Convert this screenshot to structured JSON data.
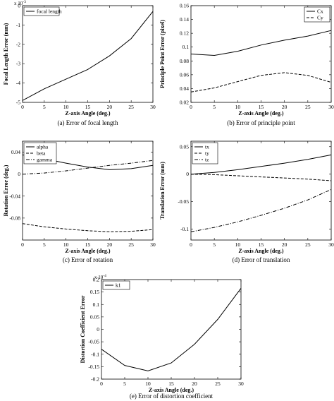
{
  "chart_data": [
    {
      "type": "line",
      "caption": "(a) Error of focal length",
      "xlabel": "Z-axis Angle (deg.)",
      "ylabel": "Focal Length Error (mm)",
      "y_scale_label": "x 10",
      "y_scale_exp": "-3",
      "xlim": [
        0,
        30
      ],
      "ylim": [
        -5,
        0
      ],
      "xticks": [
        0,
        5,
        10,
        15,
        20,
        25,
        30
      ],
      "yticks": [
        -5,
        -4,
        -3,
        -2,
        -1,
        0
      ],
      "xtick_labels": [
        "0",
        "5",
        "10",
        "15",
        "20",
        "25",
        "30"
      ],
      "ytick_labels": [
        "-5",
        "-4",
        "-3",
        "-2",
        "-1",
        "0"
      ],
      "legend_position": "top-left",
      "series": [
        {
          "name": "focal length",
          "style": "solid",
          "x": [
            0,
            5,
            10,
            15,
            20,
            25,
            30
          ],
          "y": [
            -4.9,
            -4.3,
            -3.8,
            -3.3,
            -2.6,
            -1.7,
            -0.3
          ]
        }
      ]
    },
    {
      "type": "line",
      "caption": "(b) Error of principle point",
      "xlabel": "Z-axis Angle (deg.)",
      "ylabel": "Principle Point Error (pixel)",
      "xlim": [
        0,
        30
      ],
      "ylim": [
        0.02,
        0.16
      ],
      "xticks": [
        0,
        5,
        10,
        15,
        20,
        25,
        30
      ],
      "yticks": [
        0.02,
        0.04,
        0.06,
        0.08,
        0.1,
        0.12,
        0.14,
        0.16
      ],
      "xtick_labels": [
        "0",
        "5",
        "10",
        "15",
        "20",
        "25",
        "30"
      ],
      "ytick_labels": [
        "0.02",
        "0.04",
        "0.06",
        "0.08",
        "0.1",
        "0.12",
        "0.14",
        "0.16"
      ],
      "legend_position": "top-right",
      "series": [
        {
          "name": "Cx",
          "style": "solid",
          "x": [
            0,
            5,
            10,
            15,
            20,
            25,
            30
          ],
          "y": [
            0.09,
            0.088,
            0.094,
            0.103,
            0.11,
            0.116,
            0.124
          ]
        },
        {
          "name": "Cy",
          "style": "dashed",
          "x": [
            0,
            5,
            10,
            15,
            20,
            25,
            30
          ],
          "y": [
            0.035,
            0.041,
            0.05,
            0.059,
            0.063,
            0.059,
            0.049
          ]
        }
      ]
    },
    {
      "type": "line",
      "caption": "(c) Error of rotation",
      "xlabel": "Z-axis Angle (deg.)",
      "ylabel": "Rotation Error (deg.)",
      "xlim": [
        0,
        30
      ],
      "ylim": [
        -0.12,
        0.06
      ],
      "xticks": [
        0,
        5,
        10,
        15,
        20,
        25,
        30
      ],
      "yticks": [
        -0.08,
        -0.04,
        0,
        0.04
      ],
      "xtick_labels": [
        "0",
        "5",
        "10",
        "15",
        "20",
        "25",
        "30"
      ],
      "ytick_labels": [
        "-0.08",
        "-0.04",
        "0",
        "0.04"
      ],
      "legend_position": "top-left",
      "series": [
        {
          "name": "alpha",
          "style": "solid",
          "x": [
            0,
            5,
            10,
            15,
            20,
            25,
            30
          ],
          "y": [
            0.035,
            0.028,
            0.02,
            0.013,
            0.008,
            0.01,
            0.016
          ]
        },
        {
          "name": "beta",
          "style": "dashed",
          "x": [
            0,
            5,
            10,
            15,
            20,
            25,
            30
          ],
          "y": [
            -0.09,
            -0.096,
            -0.1,
            -0.103,
            -0.105,
            -0.104,
            -0.101
          ]
        },
        {
          "name": "gamma",
          "style": "dashdot",
          "x": [
            0,
            5,
            10,
            15,
            20,
            25,
            30
          ],
          "y": [
            0,
            0.002,
            0.006,
            0.011,
            0.016,
            0.02,
            0.025
          ]
        }
      ]
    },
    {
      "type": "line",
      "caption": "(d) Error of translation",
      "xlabel": "Z-axis Angle (deg.)",
      "ylabel": "Translation Error (mm)",
      "xlim": [
        0,
        30
      ],
      "ylim": [
        -0.12,
        0.06
      ],
      "xticks": [
        0,
        5,
        10,
        15,
        20,
        25,
        30
      ],
      "yticks": [
        -0.1,
        -0.05,
        0,
        0.05
      ],
      "xtick_labels": [
        "0",
        "5",
        "10",
        "15",
        "20",
        "25",
        "30"
      ],
      "ytick_labels": [
        "-0.1",
        "-0.05",
        "0",
        "0.05"
      ],
      "legend_position": "top-left",
      "series": [
        {
          "name": "tx",
          "style": "solid",
          "x": [
            0,
            5,
            10,
            15,
            20,
            25,
            30
          ],
          "y": [
            0,
            0.003,
            0.008,
            0.014,
            0.02,
            0.027,
            0.035
          ]
        },
        {
          "name": "ty",
          "style": "dashed",
          "x": [
            0,
            5,
            10,
            15,
            20,
            25,
            30
          ],
          "y": [
            0,
            -0.001,
            -0.003,
            -0.005,
            -0.007,
            -0.009,
            -0.012
          ]
        },
        {
          "name": "tz",
          "style": "dashdot",
          "x": [
            0,
            5,
            10,
            15,
            20,
            25,
            30
          ],
          "y": [
            -0.105,
            -0.097,
            -0.087,
            -0.075,
            -0.062,
            -0.047,
            -0.028
          ]
        }
      ]
    },
    {
      "type": "line",
      "caption": "(e) Error of distortion coefficient",
      "xlabel": "Z-axis Angle (deg.)",
      "ylabel": "Distortion Coefficient Error",
      "y_scale_label": "x 10",
      "y_scale_exp": "-4",
      "xlim": [
        0,
        30
      ],
      "ylim": [
        -0.2,
        0.2
      ],
      "xticks": [
        0,
        5,
        10,
        15,
        20,
        25,
        30
      ],
      "yticks": [
        -0.2,
        -0.15,
        -0.1,
        -0.05,
        0,
        0.05,
        0.1,
        0.15,
        0.2
      ],
      "xtick_labels": [
        "0",
        "5",
        "10",
        "15",
        "20",
        "25",
        "30"
      ],
      "ytick_labels": [
        "-0.2",
        "-0.15",
        "-0.1",
        "-0.05",
        "0",
        "0.05",
        "0.1",
        "0.15",
        "0.2"
      ],
      "legend_position": "top-left",
      "series": [
        {
          "name": "k1",
          "style": "solid",
          "x": [
            0,
            5,
            10,
            15,
            20,
            25,
            30
          ],
          "y": [
            -0.08,
            -0.145,
            -0.167,
            -0.135,
            -0.06,
            0.04,
            0.165
          ]
        }
      ]
    }
  ]
}
